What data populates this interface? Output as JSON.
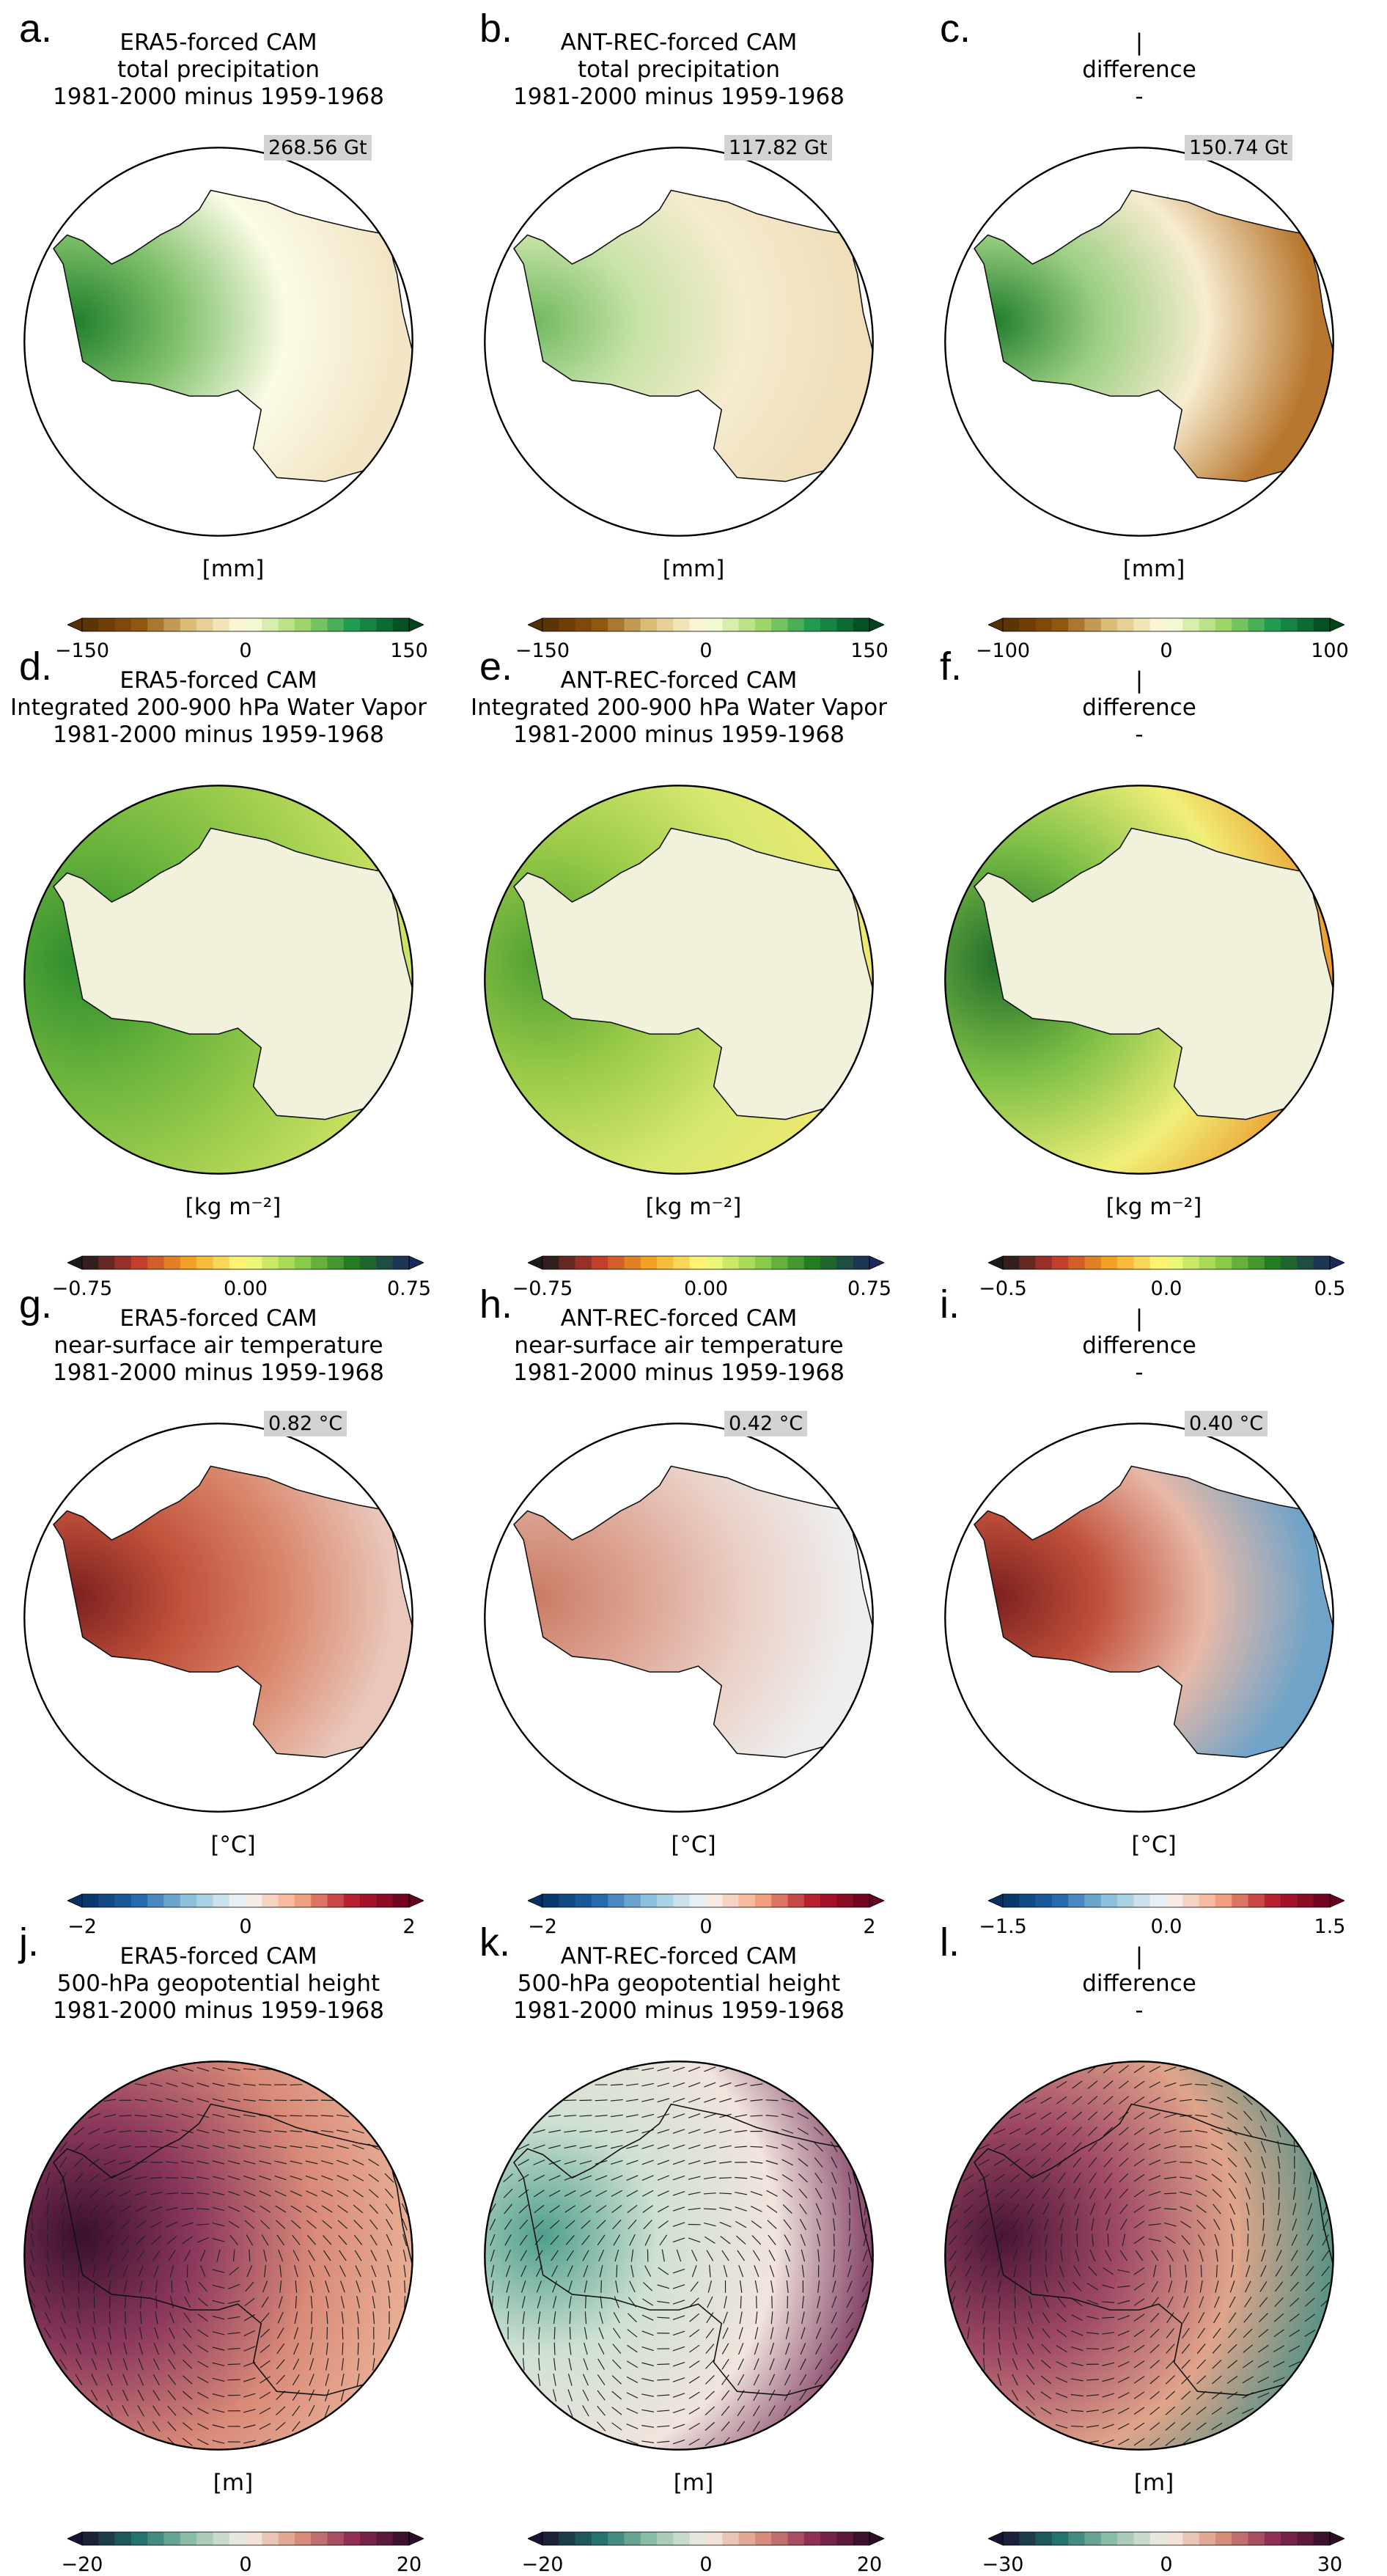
{
  "panels": [
    {
      "label": "a.",
      "title": [
        "ERA5-forced CAM",
        "total precipitation",
        "1981-2000 minus 1959-1968"
      ],
      "annotation": "268.56 Gt",
      "unit": "[mm]",
      "ticks": [
        "−150",
        "0",
        "150"
      ],
      "cmap": [
        "#543005",
        "#8c510a",
        "#dfc27d",
        "#ffffe5",
        "#a6d96a",
        "#1a9850",
        "#00441b"
      ],
      "style": "land",
      "ocean": [
        "#ffffff"
      ],
      "land": [
        "#1e7d2a",
        "#7fc06a",
        "#fbfbe6",
        "#f3e6c6"
      ]
    },
    {
      "label": "b.",
      "title": [
        "ANT-REC-forced CAM",
        "total precipitation",
        "1981-2000 minus 1959-1968"
      ],
      "annotation": "117.82 Gt",
      "unit": "[mm]",
      "ticks": [
        "−150",
        "0",
        "150"
      ],
      "cmap": [
        "#543005",
        "#8c510a",
        "#dfc27d",
        "#ffffe5",
        "#a6d96a",
        "#1a9850",
        "#00441b"
      ],
      "style": "land",
      "ocean": [
        "#ffffff"
      ],
      "land": [
        "#6fb85e",
        "#c8e3a8",
        "#f6ebcf",
        "#efdfbb"
      ]
    },
    {
      "label": "c.",
      "title": [
        "|",
        "difference",
        "-"
      ],
      "annotation": "150.74 Gt",
      "unit": "[mm]",
      "ticks": [
        "−100",
        "0",
        "100"
      ],
      "cmap": [
        "#543005",
        "#8c510a",
        "#dfc27d",
        "#ffffe5",
        "#a6d96a",
        "#1a9850",
        "#00441b"
      ],
      "style": "land",
      "ocean": [
        "#ffffff"
      ],
      "land": [
        "#1e7d2a",
        "#9ccf83",
        "#f7ecd0",
        "#b8772e"
      ]
    },
    {
      "label": "d.",
      "title": [
        "ERA5-forced CAM",
        "Integrated 200-900 hPa Water Vapor",
        "1981-2000 minus 1959-1968"
      ],
      "unit": "[kg m⁻²]",
      "ticks": [
        "−0.75",
        "0.00",
        "0.75"
      ],
      "cmap": [
        "#1a1a1a",
        "#c0392b",
        "#f5a623",
        "#ffff80",
        "#8ccf4a",
        "#1f7a1f",
        "#1b2a5c"
      ],
      "style": "ocean",
      "ocean": [
        "#2e8b2e",
        "#6ab43c",
        "#a3cf4f",
        "#d6e86a"
      ],
      "land": [
        "#f2f2dc"
      ]
    },
    {
      "label": "e.",
      "title": [
        "ANT-REC-forced CAM",
        "Integrated 200-900 hPa Water Vapor",
        "1981-2000 minus 1959-1968"
      ],
      "unit": "[kg m⁻²]",
      "ticks": [
        "−0.75",
        "0.00",
        "0.75"
      ],
      "cmap": [
        "#1a1a1a",
        "#c0392b",
        "#f5a623",
        "#ffff80",
        "#8ccf4a",
        "#1f7a1f",
        "#1b2a5c"
      ],
      "style": "ocean",
      "ocean": [
        "#4e9f32",
        "#9acb48",
        "#d8e870",
        "#f2e970"
      ],
      "land": [
        "#f2f2dc"
      ]
    },
    {
      "label": "f.",
      "title": [
        "|",
        "difference",
        "-"
      ],
      "unit": "[kg m⁻²]",
      "ticks": [
        "−0.5",
        "0.0",
        "0.5"
      ],
      "cmap": [
        "#1a1a1a",
        "#c0392b",
        "#f5a623",
        "#ffff80",
        "#8ccf4a",
        "#1f7a1f",
        "#1b2a5c"
      ],
      "style": "ocean",
      "ocean": [
        "#1f6b2b",
        "#7dbf45",
        "#f1ef78",
        "#e98a1d"
      ],
      "land": [
        "#f2f2dc"
      ]
    },
    {
      "label": "g.",
      "title": [
        "ERA5-forced CAM",
        "near-surface air temperature",
        "1981-2000 minus 1959-1968"
      ],
      "annotation": "0.82 °C",
      "unit": "[°C]",
      "ticks": [
        "−2",
        "0",
        "2"
      ],
      "cmap": [
        "#053061",
        "#2166ac",
        "#92c5de",
        "#f7f7f7",
        "#f4a582",
        "#b2182b",
        "#67001f"
      ],
      "style": "land",
      "ocean": [
        "#ffffff"
      ],
      "land": [
        "#7a1f1f",
        "#c0503a",
        "#d9876c",
        "#e9c7bb"
      ]
    },
    {
      "label": "h.",
      "title": [
        "ANT-REC-forced CAM",
        "near-surface air temperature",
        "1981-2000 minus 1959-1968"
      ],
      "annotation": "0.42 °C",
      "unit": "[°C]",
      "ticks": [
        "−2",
        "0",
        "2"
      ],
      "cmap": [
        "#053061",
        "#2166ac",
        "#92c5de",
        "#f7f7f7",
        "#f4a582",
        "#b2182b",
        "#67001f"
      ],
      "style": "land",
      "ocean": [
        "#ffffff"
      ],
      "land": [
        "#c97a63",
        "#dca392",
        "#ead0c6",
        "#eeeeee"
      ]
    },
    {
      "label": "i.",
      "title": [
        "|",
        "difference",
        "-"
      ],
      "annotation": "0.40 °C",
      "unit": "[°C]",
      "ticks": [
        "−1.5",
        "0.0",
        "1.5"
      ],
      "cmap": [
        "#053061",
        "#2166ac",
        "#92c5de",
        "#f7f7f7",
        "#f4a582",
        "#b2182b",
        "#67001f"
      ],
      "style": "land",
      "ocean": [
        "#ffffff"
      ],
      "land": [
        "#7a1f1f",
        "#c0503a",
        "#e7b9a8",
        "#6fa3c8"
      ]
    },
    {
      "label": "j.",
      "title": [
        "ERA5-forced CAM",
        "500-hPa geopotential height",
        "1981-2000 minus 1959-1968"
      ],
      "unit": "[m]",
      "ticks": [
        "−20",
        "0",
        "20"
      ],
      "cmap": [
        "#1a1233",
        "#1f6f6b",
        "#8fc0a9",
        "#f5efe6",
        "#d9917a",
        "#8e2a55",
        "#2e0d26"
      ],
      "style": "vectors",
      "ocean": [
        "#3a0f2e",
        "#8e3a5e",
        "#d98a78",
        "#eab59a"
      ],
      "land": []
    },
    {
      "label": "k.",
      "title": [
        "ANT-REC-forced CAM",
        "500-hPa geopotential height",
        "1981-2000 minus 1959-1968"
      ],
      "unit": "[m]",
      "ticks": [
        "−20",
        "0",
        "20"
      ],
      "cmap": [
        "#1a1233",
        "#1f6f6b",
        "#8fc0a9",
        "#f5efe6",
        "#d9917a",
        "#8e2a55",
        "#2e0d26"
      ],
      "style": "vectors",
      "ocean": [
        "#4f9e8c",
        "#cfe1d2",
        "#f1e4dd",
        "#6e2350"
      ],
      "land": []
    },
    {
      "label": "l.",
      "title": [
        "|",
        "difference",
        "-"
      ],
      "unit": "[m]",
      "ticks": [
        "−30",
        "0",
        "30"
      ],
      "cmap": [
        "#1a1233",
        "#1f6f6b",
        "#8fc0a9",
        "#f5efe6",
        "#d9917a",
        "#8e2a55",
        "#2e0d26"
      ],
      "style": "vectors",
      "ocean": [
        "#4a1436",
        "#a04a66",
        "#e0a48a",
        "#3f8f85"
      ],
      "land": []
    }
  ]
}
